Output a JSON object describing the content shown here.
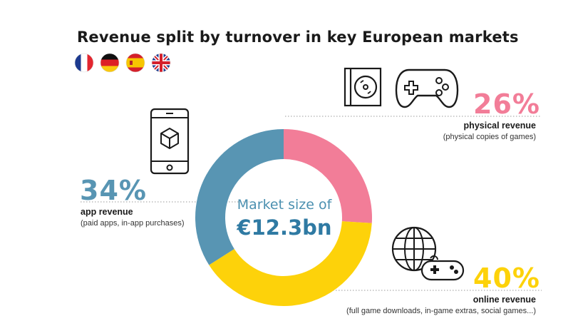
{
  "title": "Revenue split by turnover in key European markets",
  "flags": [
    {
      "name": "france-flag-icon"
    },
    {
      "name": "germany-flag-icon"
    },
    {
      "name": "spain-flag-icon"
    },
    {
      "name": "uk-flag-icon"
    }
  ],
  "center": {
    "label": "Market size of",
    "value": "€12.3bn"
  },
  "chart_data": {
    "type": "pie",
    "title": "Revenue split by turnover in key European markets",
    "categories": [
      "physical revenue",
      "online revenue",
      "app revenue"
    ],
    "values": [
      26,
      40,
      34
    ],
    "value_labels": [
      "26%",
      "40%",
      "34%"
    ],
    "descriptions": [
      "(physical copies of games)",
      "(full game downloads, in-game extras, social games...)",
      "(paid apps, in-app purchases)"
    ],
    "colors": [
      "#f27d98",
      "#fdd20a",
      "#5895b3"
    ],
    "donut": true
  },
  "colors": {
    "physical": "#f27d98",
    "online": "#fdd20a",
    "app": "#5895b3"
  },
  "icons": [
    "disc-case-icon",
    "gamepad-icon",
    "smartphone-icon",
    "globe-controller-icon"
  ]
}
